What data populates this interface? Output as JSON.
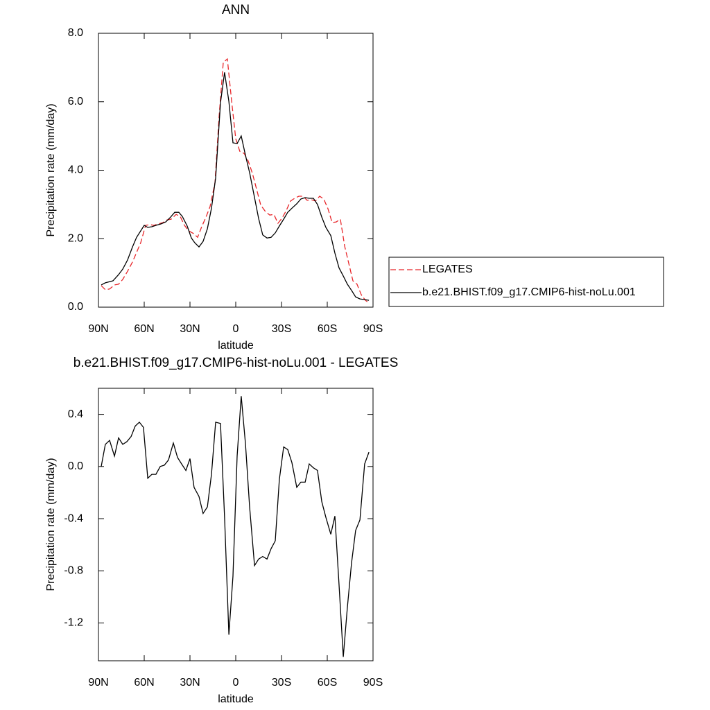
{
  "chart_data": [
    {
      "type": "line",
      "title": "ANN",
      "x_label": "latitude",
      "y_label": "Precipitation rate (mm/day)",
      "xlim": [
        90,
        -90
      ],
      "xticks": [
        {
          "value": 90,
          "label": "90N"
        },
        {
          "value": 60,
          "label": "60N"
        },
        {
          "value": 30,
          "label": "30N"
        },
        0,
        {
          "value": -30,
          "label": "30S"
        },
        {
          "value": -60,
          "label": "60S"
        },
        {
          "value": -90,
          "label": "90S"
        }
      ],
      "ylim": [
        0,
        8
      ],
      "yticks": [
        {
          "value": 0,
          "label": "0.0"
        },
        {
          "value": 2,
          "label": "2.0"
        },
        {
          "value": 4,
          "label": "4.0"
        },
        {
          "value": 6,
          "label": "6.0"
        },
        {
          "value": 8,
          "label": "8.0"
        }
      ],
      "legend": "right",
      "series": [
        {
          "name": "LEGATES",
          "color": "#e8262a",
          "dashed": true,
          "x": [
            88.2,
            85.5,
            82.7,
            79.5,
            76.8,
            74.1,
            70.9,
            67.7,
            65,
            62.3,
            59.1,
            56.4,
            53.6,
            50.9,
            47.7,
            45,
            42.3,
            39.1,
            36.4,
            33.6,
            30.9,
            27.7,
            25,
            22.3,
            19.5,
            16.8,
            13.6,
            10.9,
            8.2,
            5.5,
            2.7,
            0,
            -2.7,
            -5.5,
            -8.2,
            -10.9,
            -13.6,
            -16.4,
            -19.5,
            -22.3,
            -25,
            -27.7,
            -30.5,
            -33.2,
            -35.9,
            -38.6,
            -41.4,
            -44.1,
            -46.8,
            -49.5,
            -52.3,
            -55,
            -57.7,
            -60.5,
            -63.2,
            -65.9,
            -68.6,
            -71.4,
            -74.1,
            -76.8,
            -79.5,
            -82.3,
            -85,
            -87.3
          ],
          "values": [
            0.63,
            0.51,
            0.53,
            0.65,
            0.67,
            0.81,
            1.05,
            1.32,
            1.6,
            1.88,
            2.39,
            2.41,
            2.39,
            2.43,
            2.47,
            2.55,
            2.57,
            2.71,
            2.65,
            2.39,
            2.23,
            2.15,
            2.04,
            2.35,
            2.63,
            2.94,
            3.64,
            5.57,
            7.15,
            7.25,
            6.01,
            4.92,
            4.55,
            4.49,
            4.27,
            3.91,
            3.46,
            2.98,
            2.79,
            2.69,
            2.71,
            2.45,
            2.61,
            2.83,
            3.1,
            3.18,
            3.24,
            3.24,
            3.12,
            3.14,
            3.1,
            3.24,
            3.16,
            2.87,
            2.47,
            2.49,
            2.57,
            1.78,
            1.28,
            0.77,
            0.67,
            0.36,
            0.2,
            0.12
          ]
        },
        {
          "name": "b.e21.BHIST.f09_g17.CMIP6-hist-noLu.001",
          "color": "#000000",
          "dashed": false,
          "x": [
            88.2,
            85.5,
            80.5,
            76.8,
            74.1,
            70.9,
            67.7,
            65,
            60,
            57.7,
            55,
            52.3,
            49.1,
            45.9,
            42.7,
            40,
            37.3,
            35,
            31.8,
            29.1,
            26.8,
            24.1,
            21.4,
            18.6,
            15.9,
            13.2,
            10,
            7.3,
            4.5,
            1.8,
            -0.9,
            -3.6,
            -6.4,
            -9.1,
            -12.3,
            -15,
            -17.7,
            -20.5,
            -23.2,
            -25.9,
            -28.6,
            -31.4,
            -34.1,
            -36.8,
            -40,
            -42.7,
            -45.5,
            -48.2,
            -50.9,
            -53.6,
            -56.4,
            -59.1,
            -62.3,
            -65,
            -67.7,
            -70.5,
            -73.2,
            -75.9,
            -78.6,
            -81.4,
            -84.5,
            -87.3
          ],
          "values": [
            0.65,
            0.71,
            0.77,
            0.95,
            1.11,
            1.38,
            1.76,
            2.04,
            2.39,
            2.33,
            2.35,
            2.39,
            2.43,
            2.49,
            2.63,
            2.77,
            2.77,
            2.65,
            2.37,
            2.02,
            1.88,
            1.76,
            1.92,
            2.29,
            2.89,
            3.77,
            5.97,
            6.86,
            6.01,
            4.8,
            4.78,
            5,
            4.43,
            3.93,
            3.2,
            2.59,
            2.11,
            2.02,
            2.04,
            2.17,
            2.37,
            2.57,
            2.77,
            2.89,
            3.02,
            3.16,
            3.2,
            3.18,
            3.18,
            3,
            2.63,
            2.33,
            2.09,
            1.58,
            1.15,
            0.91,
            0.67,
            0.49,
            0.3,
            0.24,
            0.22,
            0.2
          ]
        }
      ]
    },
    {
      "type": "line",
      "title": "b.e21.BHIST.f09_g17.CMIP6-hist-noLu.001 - LEGATES",
      "x_label": "latitude",
      "y_label": "Precipitation rate (mm/day)",
      "xlim": [
        90,
        -90
      ],
      "xticks": [
        {
          "value": 90,
          "label": "90N"
        },
        {
          "value": 60,
          "label": "60N"
        },
        {
          "value": 30,
          "label": "30N"
        },
        0,
        {
          "value": -30,
          "label": "30S"
        },
        {
          "value": -60,
          "label": "60S"
        },
        {
          "value": -90,
          "label": "90S"
        }
      ],
      "ylim": [
        -1.49,
        0.6
      ],
      "yticks": [
        -1.2,
        -0.8,
        -0.4,
        {
          "value": 0,
          "label": "0.0"
        },
        0.4
      ],
      "series": [
        {
          "color": "#000000",
          "dashed": false,
          "x": [
            88.2,
            85.5,
            82.7,
            79.5,
            76.8,
            74.1,
            71.4,
            68.6,
            65.9,
            63.2,
            60.5,
            57.7,
            55,
            52.3,
            49.5,
            46.8,
            44.1,
            40.9,
            38.2,
            35.5,
            32.7,
            30,
            27.3,
            24.1,
            21.4,
            18.6,
            15.9,
            13.2,
            10,
            7.3,
            4.5,
            1.8,
            -0.9,
            -3.6,
            -6.4,
            -9.1,
            -12.3,
            -15,
            -17.7,
            -20.5,
            -23.2,
            -25.9,
            -28.6,
            -31.4,
            -34.1,
            -36.8,
            -40,
            -42.7,
            -45.5,
            -48.2,
            -50.9,
            -53.6,
            -56.4,
            -59.1,
            -62.3,
            -65,
            -67.7,
            -70.5,
            -73.2,
            -75.9,
            -78.6,
            -81.4,
            -84.5,
            -87.3
          ],
          "values": [
            0,
            0.17,
            0.2,
            0.08,
            0.22,
            0.17,
            0.19,
            0.23,
            0.31,
            0.34,
            0.3,
            -0.09,
            -0.06,
            -0.06,
            0,
            0.01,
            0.05,
            0.18,
            0.07,
            0.02,
            -0.03,
            0.06,
            -0.16,
            -0.23,
            -0.36,
            -0.31,
            -0.06,
            0.34,
            0.33,
            -0.39,
            -1.29,
            -0.84,
            0.08,
            0.54,
            0.17,
            -0.31,
            -0.76,
            -0.71,
            -0.69,
            -0.71,
            -0.63,
            -0.57,
            -0.1,
            0.15,
            0.13,
            0.03,
            -0.16,
            -0.12,
            -0.12,
            0.02,
            -0.01,
            -0.03,
            -0.27,
            -0.39,
            -0.52,
            -0.38,
            -0.9,
            -1.46,
            -1.08,
            -0.74,
            -0.49,
            -0.41,
            0.02,
            0.11
          ]
        }
      ]
    }
  ]
}
